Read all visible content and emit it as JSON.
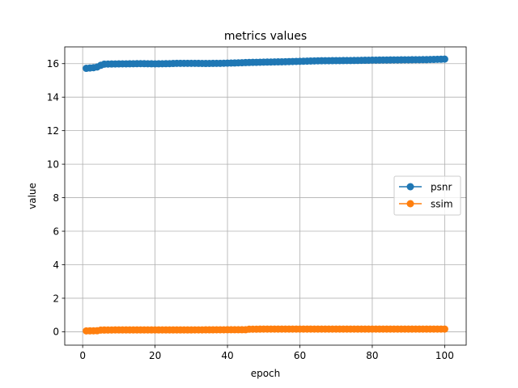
{
  "chart_data": {
    "type": "line",
    "title": "metrics values",
    "xlabel": "epoch",
    "ylabel": "value",
    "xlim": [
      -4.95,
      105.95
    ],
    "ylim": [
      -0.8,
      17.0
    ],
    "xticks": [
      0,
      20,
      40,
      60,
      80,
      100
    ],
    "yticks": [
      0,
      2,
      4,
      6,
      8,
      10,
      12,
      14,
      16
    ],
    "grid": true,
    "legend_position": "center-right",
    "series": [
      {
        "name": "psnr",
        "color": "#1f77b4",
        "marker": "circle",
        "x_start": 1,
        "x_end": 100,
        "keypoints": [
          [
            1,
            15.72
          ],
          [
            2,
            15.74
          ],
          [
            3,
            15.76
          ],
          [
            4,
            15.8
          ],
          [
            5,
            15.9
          ],
          [
            6,
            15.97
          ],
          [
            8,
            15.98
          ],
          [
            12,
            15.99
          ],
          [
            16,
            16.0
          ],
          [
            20,
            15.99
          ],
          [
            24,
            16.0
          ],
          [
            26,
            16.02
          ],
          [
            30,
            16.02
          ],
          [
            34,
            16.01
          ],
          [
            38,
            16.02
          ],
          [
            42,
            16.04
          ],
          [
            46,
            16.07
          ],
          [
            50,
            16.09
          ],
          [
            55,
            16.11
          ],
          [
            60,
            16.14
          ],
          [
            65,
            16.17
          ],
          [
            70,
            16.18
          ],
          [
            75,
            16.19
          ],
          [
            80,
            16.21
          ],
          [
            85,
            16.22
          ],
          [
            90,
            16.23
          ],
          [
            95,
            16.24
          ],
          [
            100,
            16.27
          ]
        ]
      },
      {
        "name": "ssim",
        "color": "#ff7f0e",
        "marker": "circle",
        "x_start": 1,
        "x_end": 100,
        "keypoints": [
          [
            1,
            0.05
          ],
          [
            4,
            0.06
          ],
          [
            5,
            0.1
          ],
          [
            10,
            0.11
          ],
          [
            20,
            0.11
          ],
          [
            30,
            0.11
          ],
          [
            40,
            0.12
          ],
          [
            45,
            0.12
          ],
          [
            46,
            0.15
          ],
          [
            50,
            0.16
          ],
          [
            60,
            0.16
          ],
          [
            70,
            0.16
          ],
          [
            80,
            0.16
          ],
          [
            90,
            0.16
          ],
          [
            100,
            0.16
          ]
        ]
      }
    ]
  }
}
